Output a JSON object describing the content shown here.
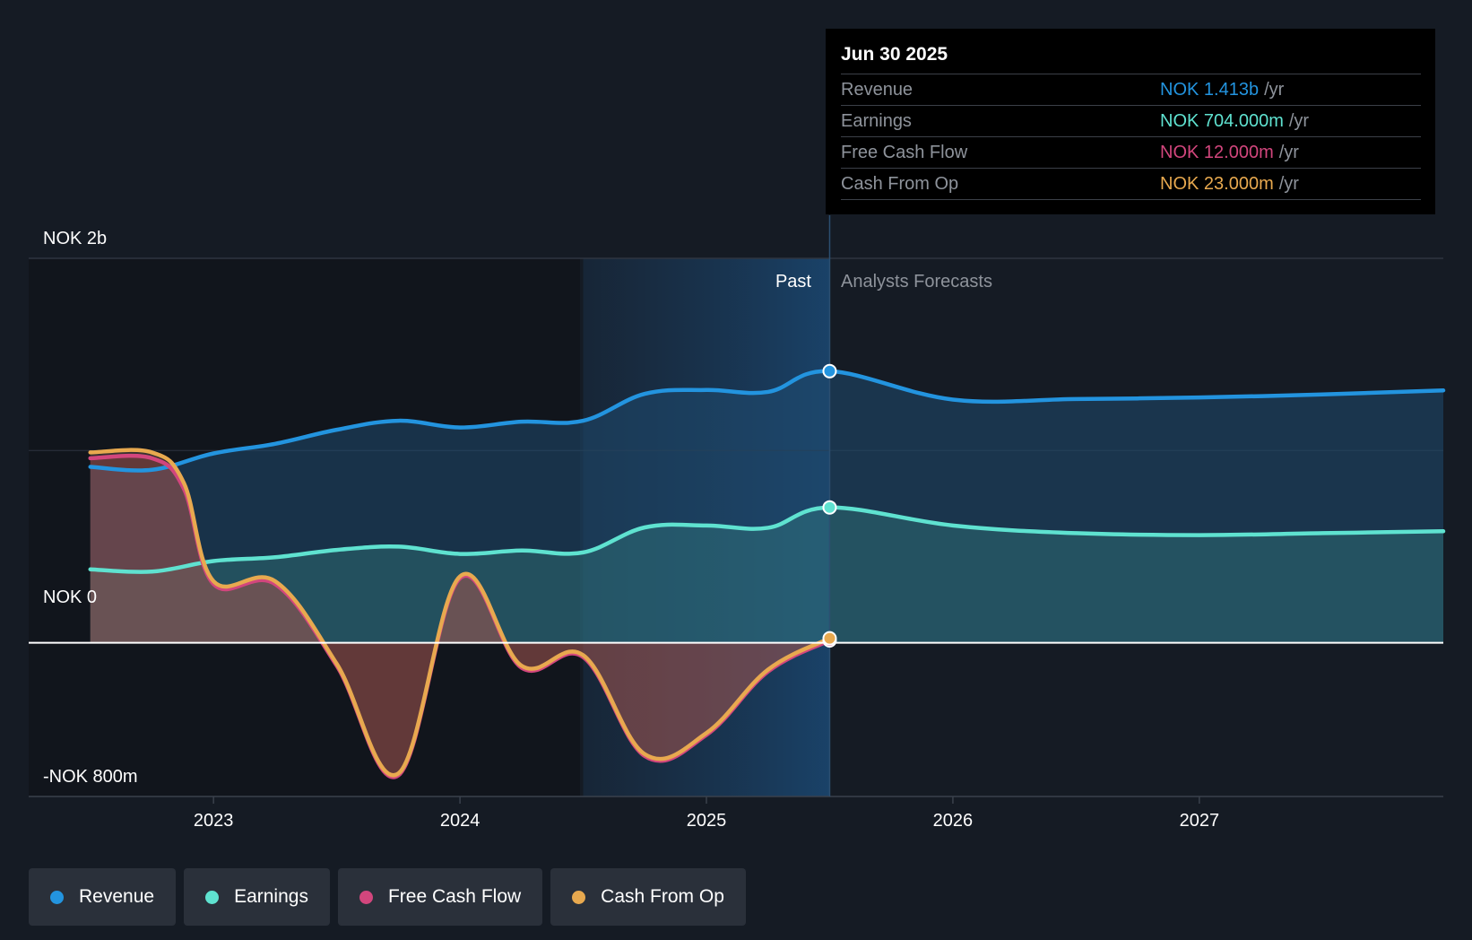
{
  "chart_data": {
    "type": "area",
    "currency": "NOK",
    "y_labels": {
      "top": "NOK 2b",
      "zero": "NOK 0",
      "bottom": "-NOK 800m"
    },
    "ylim": [
      -800,
      2000
    ],
    "y_unit": "NOK m",
    "x_ticks": [
      "2023",
      "2024",
      "2025",
      "2026",
      "2027"
    ],
    "x_tick_values": [
      2023,
      2024,
      2025,
      2026,
      2027
    ],
    "xlim": [
      2022.25,
      2027.99
    ],
    "past_label": "Past",
    "forecast_label": "Analysts Forecasts",
    "past_region_start": 2024.5,
    "divider_x": 2025.5,
    "series": [
      {
        "name": "Revenue",
        "color": "#2394df",
        "x": [
          2022.5,
          2022.75,
          2023.0,
          2023.25,
          2023.5,
          2023.75,
          2024.0,
          2024.25,
          2024.5,
          2024.75,
          2025.0,
          2025.25,
          2025.5,
          2026.0,
          2026.5,
          2027.0,
          2027.5,
          2027.99
        ],
        "values": [
          915,
          900,
          985,
          1035,
          1108,
          1155,
          1120,
          1150,
          1155,
          1295,
          1315,
          1305,
          1413,
          1265,
          1268,
          1276,
          1292,
          1313
        ]
      },
      {
        "name": "Earnings",
        "color": "#5fe2d0",
        "x": [
          2022.5,
          2022.75,
          2023.0,
          2023.25,
          2023.5,
          2023.75,
          2024.0,
          2024.25,
          2024.5,
          2024.75,
          2025.0,
          2025.25,
          2025.5,
          2026.0,
          2026.5,
          2027.0,
          2027.5,
          2027.99
        ],
        "values": [
          382,
          370,
          425,
          445,
          483,
          500,
          462,
          480,
          470,
          600,
          610,
          598,
          704,
          610,
          570,
          560,
          570,
          580
        ]
      },
      {
        "name": "Free Cash Flow",
        "color": "#d2467d",
        "x": [
          2022.5,
          2022.75,
          2022.88,
          2023.0,
          2023.25,
          2023.5,
          2023.75,
          2024.0,
          2024.25,
          2024.5,
          2024.75,
          2025.0,
          2025.25,
          2025.5
        ],
        "values": [
          960,
          960,
          800,
          305,
          305,
          -120,
          -690,
          335,
          -130,
          -75,
          -590,
          -480,
          -150,
          12
        ]
      },
      {
        "name": "Cash From Op",
        "color": "#e8a94f",
        "x": [
          2022.5,
          2022.75,
          2022.88,
          2023.0,
          2023.25,
          2023.5,
          2023.75,
          2024.0,
          2024.25,
          2024.5,
          2024.75,
          2025.0,
          2025.25,
          2025.5
        ],
        "values": [
          990,
          990,
          830,
          320,
          320,
          -110,
          -680,
          345,
          -120,
          -65,
          -580,
          -470,
          -140,
          23
        ]
      }
    ]
  },
  "tooltip": {
    "date": "Jun 30 2025",
    "rows": [
      {
        "label": "Revenue",
        "value": "NOK 1.413b",
        "unit": "/yr",
        "color": "#2394df"
      },
      {
        "label": "Earnings",
        "value": "NOK 704.000m",
        "unit": "/yr",
        "color": "#5fe2d0"
      },
      {
        "label": "Free Cash Flow",
        "value": "NOK 12.000m",
        "unit": "/yr",
        "color": "#d2467d"
      },
      {
        "label": "Cash From Op",
        "value": "NOK 23.000m",
        "unit": "/yr",
        "color": "#e8a94f"
      }
    ]
  },
  "legend": [
    {
      "label": "Revenue",
      "color": "#2394df"
    },
    {
      "label": "Earnings",
      "color": "#5fe2d0"
    },
    {
      "label": "Free Cash Flow",
      "color": "#d2467d"
    },
    {
      "label": "Cash From Op",
      "color": "#e8a94f"
    }
  ]
}
